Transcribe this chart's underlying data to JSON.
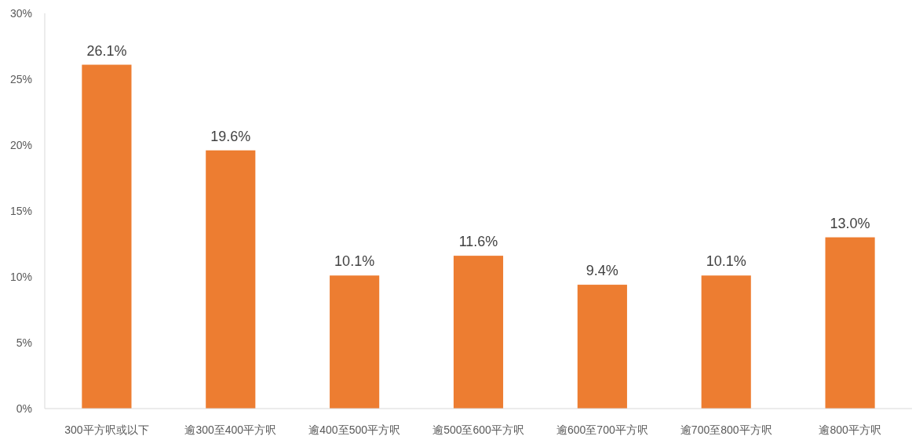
{
  "chart_data": {
    "type": "bar",
    "categories": [
      "300平方呎或以下",
      "逾300至400平方呎",
      "逾400至500平方呎",
      "逾500至600平方呎",
      "逾600至700平方呎",
      "逾700至800平方呎",
      "逾800平方呎"
    ],
    "values": [
      26.1,
      19.6,
      10.1,
      11.6,
      9.4,
      10.1,
      13.0
    ],
    "value_labels": [
      "26.1%",
      "19.6%",
      "10.1%",
      "11.6%",
      "9.4%",
      "10.1%",
      "13.0%"
    ],
    "color": "#ed7d31",
    "ylim": [
      0,
      30
    ],
    "yticks": [
      {
        "value": 0,
        "label": "0%"
      },
      {
        "value": 5,
        "label": "5%"
      },
      {
        "value": 10,
        "label": "10%"
      },
      {
        "value": 15,
        "label": "15%"
      },
      {
        "value": 20,
        "label": "20%"
      },
      {
        "value": 25,
        "label": "25%"
      },
      {
        "value": 30,
        "label": "30%"
      }
    ],
    "grid": false
  }
}
